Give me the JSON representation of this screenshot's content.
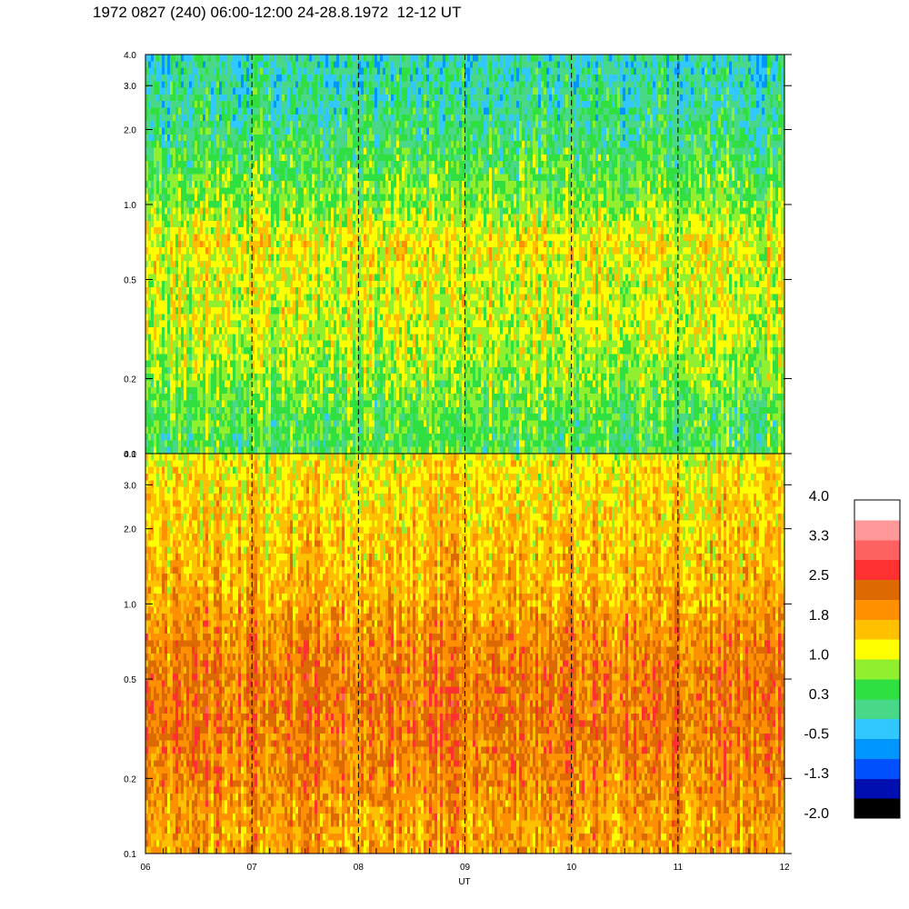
{
  "title": "1972 0827 (240) 06:00-12:00 24-28.8.1972  12-12 UT",
  "chart_data": {
    "type": "heatmap",
    "title": "1972 0827 (240) 06:00-12:00 24-28.8.1972  12-12 UT",
    "xlabel": "UT",
    "x_tick_labels": [
      "06",
      "07",
      "08",
      "09",
      "10",
      "11",
      "12"
    ],
    "x_range": [
      6,
      12
    ],
    "x_unit": "hour",
    "y_scale": "log",
    "y_range": [
      0.1,
      4.0
    ],
    "panels": [
      {
        "name": "upper",
        "y_ticks": [
          {
            "value": 0.1,
            "label": "0.1"
          },
          {
            "value": 0.2,
            "label": "0.2"
          },
          {
            "value": 0.5,
            "label": "0.5"
          },
          {
            "value": 1.0,
            "label": "1.0"
          },
          {
            "value": 2.0,
            "label": "2.0"
          },
          {
            "value": 3.0,
            "label": "3.0"
          },
          {
            "value": 4.0,
            "label": "4.0"
          }
        ],
        "profile": [
          {
            "y": 0.1,
            "level": 0.4
          },
          {
            "y": 0.14,
            "level": 0.5
          },
          {
            "y": 0.2,
            "level": 0.75
          },
          {
            "y": 0.3,
            "level": 1.0
          },
          {
            "y": 0.5,
            "level": 1.1
          },
          {
            "y": 0.7,
            "level": 1.25
          },
          {
            "y": 1.0,
            "level": 0.75
          },
          {
            "y": 1.5,
            "level": 0.45
          },
          {
            "y": 2.0,
            "level": 0.2
          },
          {
            "y": 3.0,
            "level": 0.0
          },
          {
            "y": 4.0,
            "level": -0.1
          }
        ]
      },
      {
        "name": "lower",
        "y_ticks": [
          {
            "value": 0.1,
            "label": "0.1"
          },
          {
            "value": 0.2,
            "label": "0.2"
          },
          {
            "value": 0.5,
            "label": "0.5"
          },
          {
            "value": 1.0,
            "label": "1.0"
          },
          {
            "value": 2.0,
            "label": "2.0"
          },
          {
            "value": 3.0,
            "label": "3.0"
          },
          {
            "value": 4.0,
            "label": "4.0"
          }
        ],
        "profile": [
          {
            "y": 0.1,
            "level": 1.8
          },
          {
            "y": 0.15,
            "level": 1.9
          },
          {
            "y": 0.2,
            "level": 2.05
          },
          {
            "y": 0.35,
            "level": 2.2
          },
          {
            "y": 0.5,
            "level": 2.15
          },
          {
            "y": 0.8,
            "level": 2.0
          },
          {
            "y": 1.0,
            "level": 1.75
          },
          {
            "y": 1.5,
            "level": 1.6
          },
          {
            "y": 2.0,
            "level": 1.5
          },
          {
            "y": 3.0,
            "level": 1.4
          },
          {
            "y": 4.0,
            "level": 1.2
          }
        ]
      }
    ],
    "dashed_lines_at": [
      7,
      8,
      9,
      10,
      11
    ],
    "colorbar": {
      "labels": [
        "4.0",
        "3.3",
        "2.5",
        "1.8",
        "1.0",
        "0.3",
        "-0.5",
        "-1.3",
        "-2.0"
      ],
      "min": -2.0,
      "max": 4.0,
      "colors": [
        "#000000",
        "#0010b0",
        "#0050ff",
        "#0096ff",
        "#30c8ff",
        "#48d888",
        "#30e040",
        "#90f030",
        "#ffff00",
        "#ffc000",
        "#ff9000",
        "#dd6a00",
        "#ff3030",
        "#ff6060",
        "#ff9898",
        "#ffffff"
      ]
    }
  }
}
